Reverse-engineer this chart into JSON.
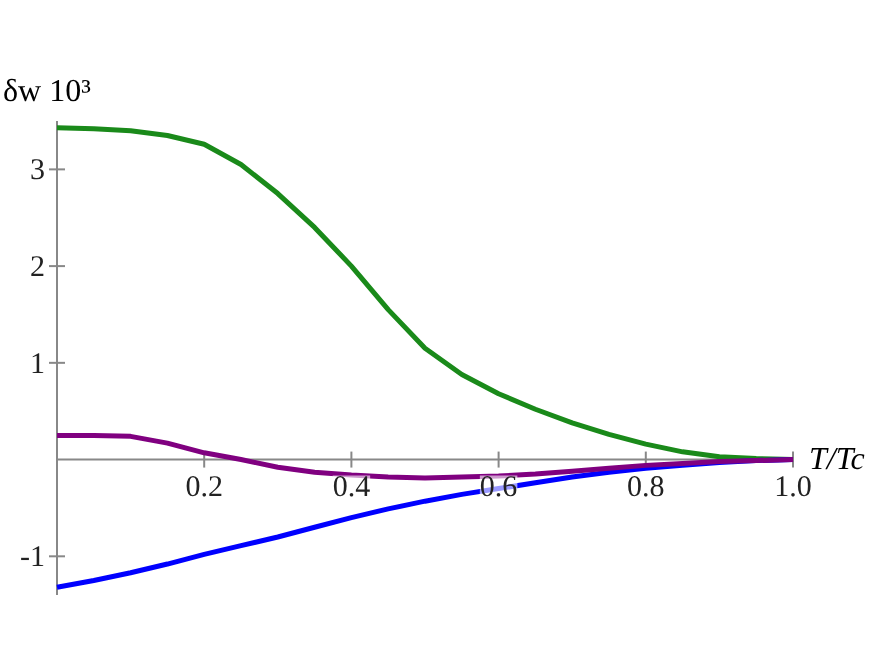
{
  "chart_data": {
    "type": "line",
    "xlabel": "T/Tc",
    "ylabel": "δw 10³",
    "xlim": [
      0,
      1.0
    ],
    "ylim": [
      -1.4,
      3.5
    ],
    "xticks": [
      0.2,
      0.4,
      0.6,
      0.8,
      {
        "value": 1.0,
        "label": "1.0"
      }
    ],
    "yticks": [
      -1,
      1,
      2,
      3
    ],
    "grid": false,
    "line_style": "solid",
    "x": [
      0,
      0.05,
      0.1,
      0.15,
      0.2,
      0.25,
      0.3,
      0.35,
      0.4,
      0.45,
      0.5,
      0.55,
      0.6,
      0.65,
      0.7,
      0.75,
      0.8,
      0.85,
      0.9,
      0.95,
      1.0
    ],
    "series": [
      {
        "color": "#1a8a1a",
        "values": [
          3.43,
          3.42,
          3.4,
          3.35,
          3.26,
          3.05,
          2.75,
          2.4,
          2.0,
          1.55,
          1.15,
          0.88,
          0.68,
          0.52,
          0.38,
          0.26,
          0.16,
          0.08,
          0.03,
          0.01,
          0
        ]
      },
      {
        "color": "#0000ff",
        "values": [
          -1.32,
          -1.25,
          -1.17,
          -1.08,
          -0.98,
          -0.89,
          -0.8,
          -0.7,
          -0.6,
          -0.51,
          -0.43,
          -0.36,
          -0.3,
          -0.24,
          -0.18,
          -0.13,
          -0.09,
          -0.06,
          -0.03,
          -0.01,
          0
        ]
      },
      {
        "color": "#800080",
        "values": [
          0.25,
          0.25,
          0.24,
          0.17,
          0.07,
          0.0,
          -0.08,
          -0.13,
          -0.16,
          -0.18,
          -0.19,
          -0.18,
          -0.17,
          -0.15,
          -0.12,
          -0.09,
          -0.06,
          -0.04,
          -0.02,
          -0.01,
          0
        ]
      }
    ]
  }
}
